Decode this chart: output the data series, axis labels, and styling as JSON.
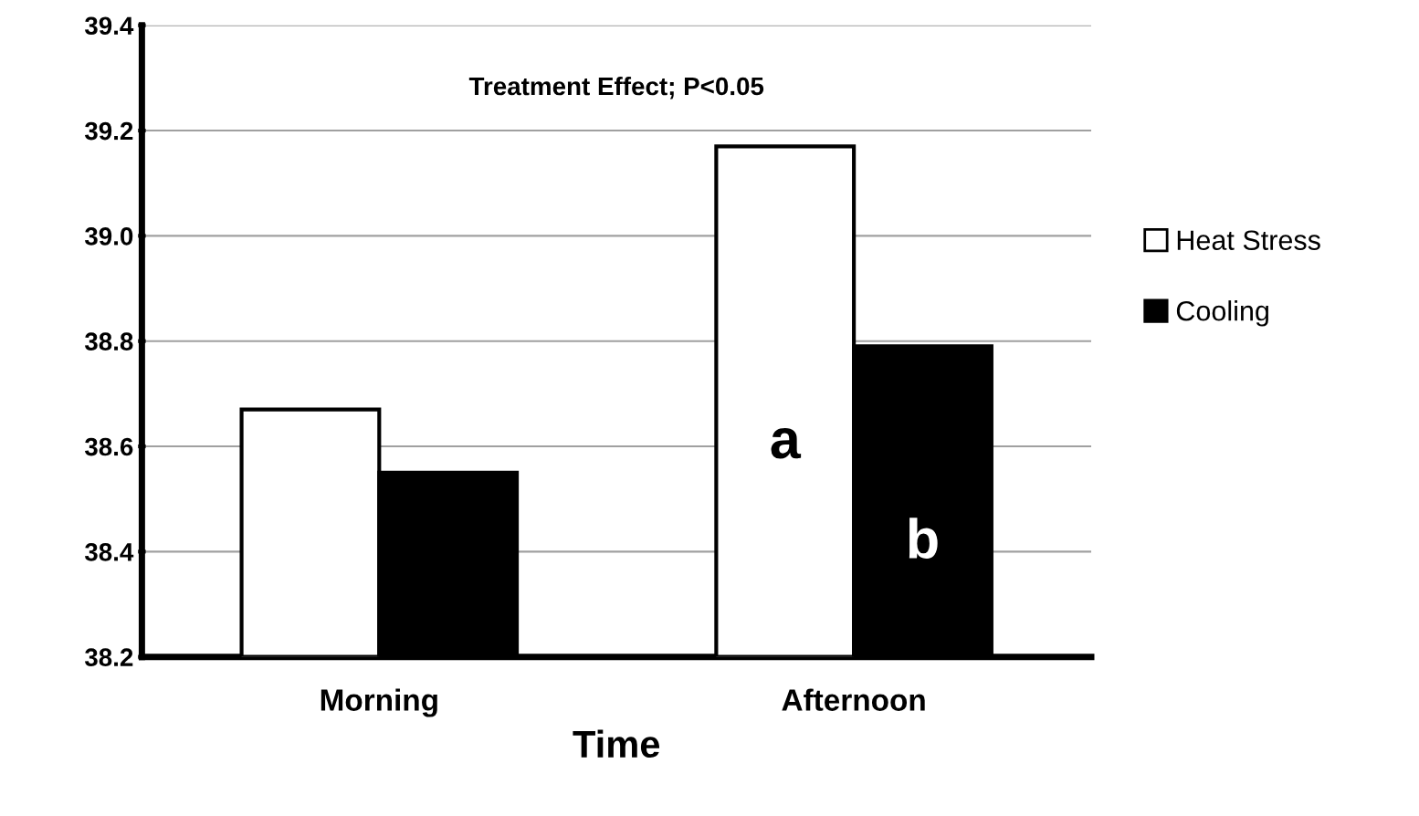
{
  "chart_data": {
    "type": "bar",
    "categories": [
      "Morning",
      "Afternoon"
    ],
    "xlabel": "Time",
    "series": [
      {
        "name": "Heat Stress",
        "color": "#ffffff",
        "values": [
          38.67,
          39.17
        ],
        "value_labels": [
          null,
          "a"
        ]
      },
      {
        "name": "Cooling",
        "color": "#000000",
        "values": [
          38.55,
          38.79
        ],
        "value_labels": [
          null,
          "b"
        ]
      }
    ],
    "ylim": [
      38.2,
      39.4
    ],
    "yticks": [
      {
        "value": 38.2,
        "label": "38.2"
      },
      {
        "value": 38.4,
        "label": "38.4"
      },
      {
        "value": 38.6,
        "label": "38.6"
      },
      {
        "value": 38.8,
        "label": "38.8"
      },
      {
        "value": 39.0,
        "label": "39.0"
      },
      {
        "value": 39.2,
        "label": "39.2"
      },
      {
        "value": 39.4,
        "label": "39.4"
      }
    ],
    "grid": "y",
    "legend": "right",
    "annotations": [
      "Treatment Effect; P<0.05"
    ]
  }
}
